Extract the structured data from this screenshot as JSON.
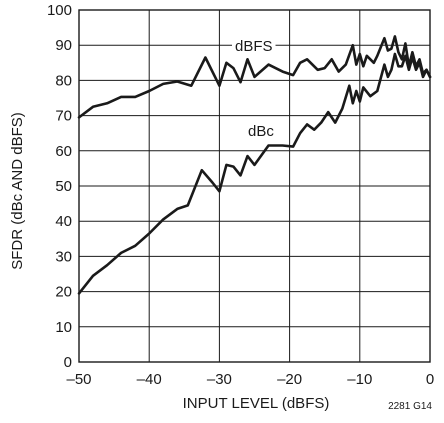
{
  "chart_data": {
    "type": "line",
    "xlabel": "INPUT LEVEL (dBFS)",
    "ylabel": "SFDR (dBc AND dBFS)",
    "xlim": [
      -50,
      0
    ],
    "ylim": [
      0,
      100
    ],
    "x_ticks": [
      "–50",
      "–40",
      "–30",
      "–20",
      "–10",
      "0"
    ],
    "y_ticks": [
      "0",
      "10",
      "20",
      "30",
      "40",
      "50",
      "60",
      "70",
      "80",
      "90",
      "100"
    ],
    "grid": true,
    "figure_id": "2281 G14",
    "series": [
      {
        "name": "dBFS",
        "points": [
          [
            -50,
            69.5
          ],
          [
            -48,
            72.5
          ],
          [
            -46,
            73.5
          ],
          [
            -44,
            75.3
          ],
          [
            -42,
            75.3
          ],
          [
            -40,
            77
          ],
          [
            -38,
            79
          ],
          [
            -36,
            79.7
          ],
          [
            -34,
            78.5
          ],
          [
            -32,
            86.5
          ],
          [
            -30,
            78.5
          ],
          [
            -29,
            85
          ],
          [
            -28,
            83.5
          ],
          [
            -27,
            79.5
          ],
          [
            -26,
            86
          ],
          [
            -25,
            81
          ],
          [
            -23,
            84.5
          ],
          [
            -21,
            82.5
          ],
          [
            -19.5,
            81.5
          ],
          [
            -18.5,
            85
          ],
          [
            -17.5,
            86
          ],
          [
            -16,
            83
          ],
          [
            -15,
            83.5
          ],
          [
            -14,
            86
          ],
          [
            -13,
            82.5
          ],
          [
            -12,
            84.5
          ],
          [
            -11,
            90
          ],
          [
            -10.5,
            84.5
          ],
          [
            -10,
            87.5
          ],
          [
            -9.5,
            84
          ],
          [
            -9,
            87
          ],
          [
            -8,
            85
          ],
          [
            -7.5,
            87
          ],
          [
            -6.5,
            92
          ],
          [
            -6,
            88.5
          ],
          [
            -5.5,
            89
          ],
          [
            -5,
            92.5
          ],
          [
            -4.5,
            88
          ],
          [
            -4,
            86
          ],
          [
            -3.5,
            90.5
          ],
          [
            -3,
            84
          ],
          [
            -2.5,
            88
          ],
          [
            -2,
            84
          ],
          [
            -1.5,
            86
          ],
          [
            -1,
            82
          ],
          [
            -0.5,
            83
          ],
          [
            0,
            81
          ]
        ]
      },
      {
        "name": "dBc",
        "points": [
          [
            -50,
            19.5
          ],
          [
            -48,
            24.5
          ],
          [
            -46,
            27.5
          ],
          [
            -44,
            31
          ],
          [
            -42,
            33
          ],
          [
            -40,
            36.5
          ],
          [
            -38,
            40.5
          ],
          [
            -36,
            43.5
          ],
          [
            -34.5,
            44.5
          ],
          [
            -32.5,
            54.5
          ],
          [
            -31,
            51
          ],
          [
            -30,
            48.5
          ],
          [
            -29,
            56
          ],
          [
            -28,
            55.5
          ],
          [
            -27,
            53
          ],
          [
            -26,
            58.5
          ],
          [
            -25,
            56
          ],
          [
            -23,
            61.5
          ],
          [
            -21,
            61.5
          ],
          [
            -19.5,
            61.2
          ],
          [
            -18.5,
            65
          ],
          [
            -17.5,
            67.5
          ],
          [
            -16.5,
            66
          ],
          [
            -15.5,
            68
          ],
          [
            -14.5,
            71
          ],
          [
            -13.5,
            68
          ],
          [
            -12.5,
            72
          ],
          [
            -11.5,
            78.5
          ],
          [
            -11,
            73.5
          ],
          [
            -10.5,
            77
          ],
          [
            -10,
            74
          ],
          [
            -9.5,
            78
          ],
          [
            -8.5,
            75.5
          ],
          [
            -7.5,
            77
          ],
          [
            -6.5,
            84.5
          ],
          [
            -6,
            81
          ],
          [
            -5.5,
            83
          ],
          [
            -5,
            87.5
          ],
          [
            -4.5,
            84
          ],
          [
            -4,
            84
          ],
          [
            -3.5,
            87
          ],
          [
            -3,
            83
          ],
          [
            -2.5,
            86.5
          ],
          [
            -2,
            83
          ],
          [
            -1.5,
            85
          ],
          [
            -1,
            81
          ],
          [
            -0.5,
            83
          ],
          [
            0,
            81
          ]
        ]
      }
    ]
  }
}
